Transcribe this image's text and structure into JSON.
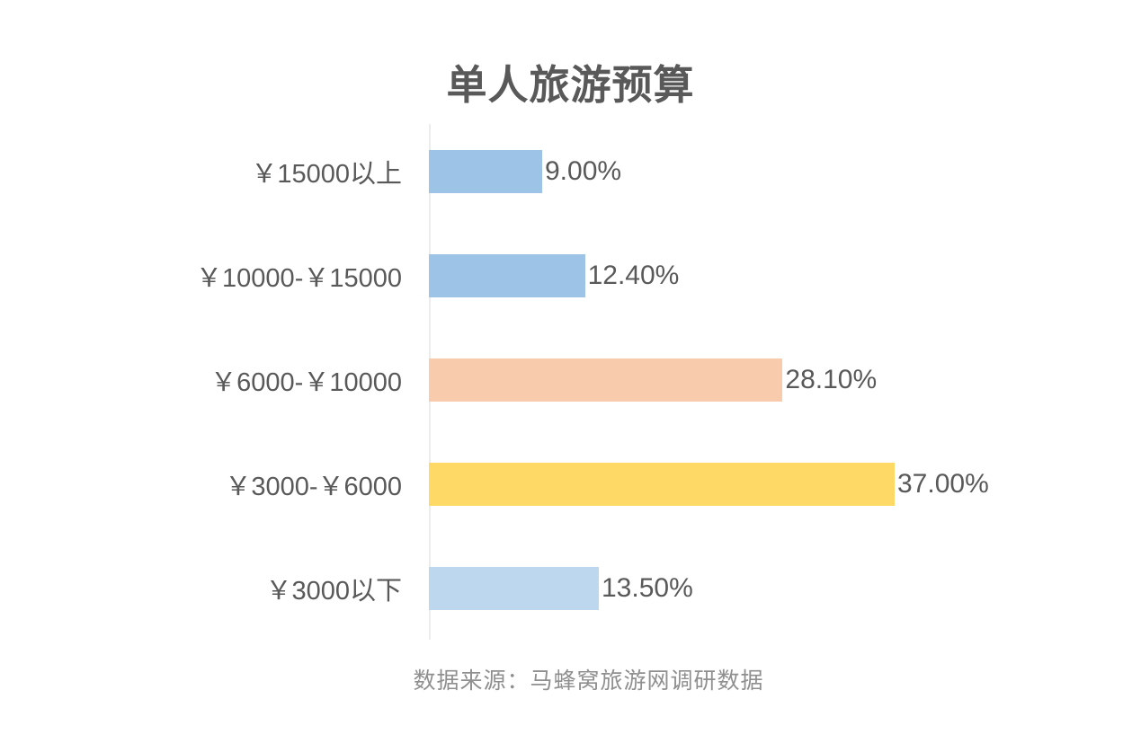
{
  "title": "单人旅游预算",
  "source_note": "数据来源：马蜂窝旅游网调研数据",
  "chart_data": {
    "type": "bar",
    "orientation": "horizontal",
    "title": "单人旅游预算",
    "categories": [
      "￥15000以上",
      "￥10000-￥15000",
      "￥6000-￥10000",
      "￥3000-￥6000",
      "￥3000以下"
    ],
    "values": [
      9.0,
      12.4,
      28.1,
      37.0,
      13.5
    ],
    "value_labels": [
      "9.00%",
      "12.40%",
      "28.10%",
      "37.00%",
      "13.50%"
    ],
    "bar_colors": [
      "#9DC3E6",
      "#9DC3E6",
      "#F8CBAD",
      "#FFD966",
      "#BDD7EE"
    ],
    "xlabel": "",
    "ylabel": "",
    "xlim": [
      0,
      40
    ],
    "grid": false,
    "legend": false,
    "annotation": "数据来源：马蜂窝旅游网调研数据",
    "colors": {
      "title_text": "#595959",
      "label_text": "#595959",
      "source_text": "#8f8f8f",
      "axis_line": "#ececec",
      "background": "#ffffff"
    }
  }
}
